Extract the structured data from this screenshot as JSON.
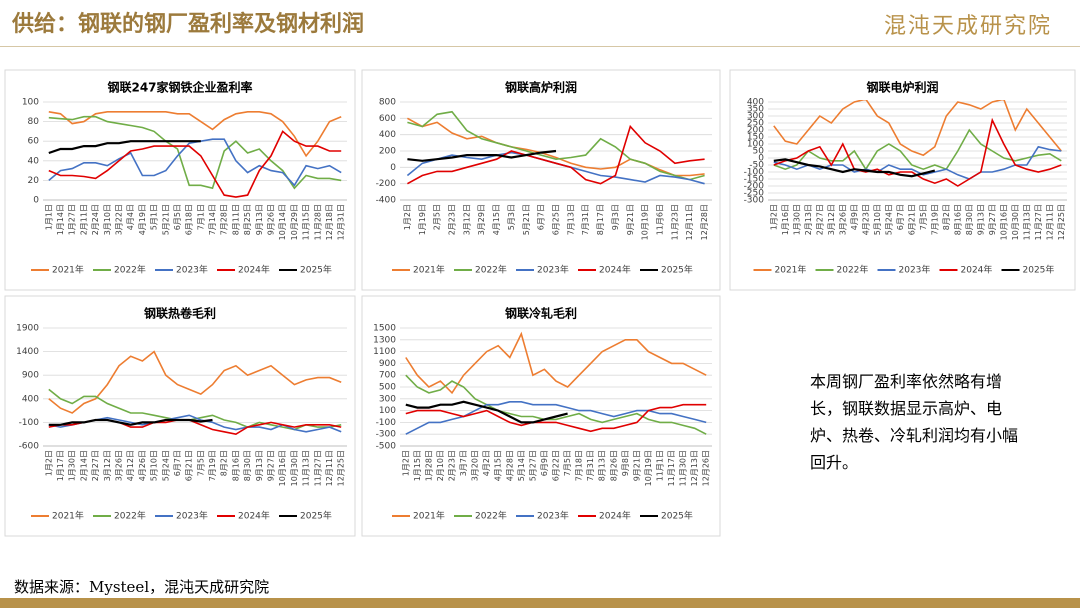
{
  "header": {
    "title": "供给：钢联的钢厂盈利率及钢材利润",
    "logo": "混沌天成研究院"
  },
  "chart_data": [
    {
      "type": "line",
      "title": "钢联247家钢铁企业盈利率",
      "categories": [
        "1月1日",
        "1月14日",
        "1月27日",
        "2月11日",
        "2月24日",
        "3月10日",
        "3月22日",
        "4月4日",
        "4月19日",
        "5月1日",
        "5月21日",
        "6月5日",
        "6月18日",
        "7月1日",
        "7月14日",
        "7月28日",
        "8月11日",
        "8月25日",
        "9月13日",
        "9月26日",
        "10月14日",
        "10月29日",
        "11月15日",
        "11月28日",
        "12月18日",
        "12月31日"
      ],
      "ylim": [
        0,
        100
      ],
      "yticks": [
        0,
        20,
        40,
        60,
        80,
        100
      ],
      "grid": true,
      "series": [
        {
          "name": "2021年",
          "color": "#ED7D31",
          "values": [
            90,
            88,
            78,
            80,
            88,
            90,
            90,
            90,
            90,
            90,
            90,
            88,
            88,
            80,
            72,
            82,
            88,
            90,
            90,
            88,
            80,
            65,
            45,
            60,
            80,
            85
          ]
        },
        {
          "name": "2022年",
          "color": "#70AD47",
          "values": [
            84,
            83,
            82,
            85,
            85,
            80,
            78,
            76,
            74,
            70,
            60,
            52,
            15,
            15,
            12,
            50,
            60,
            48,
            52,
            40,
            30,
            12,
            25,
            22,
            22,
            20
          ]
        },
        {
          "name": "2023年",
          "color": "#4472C4",
          "values": [
            20,
            30,
            32,
            38,
            38,
            35,
            42,
            48,
            25,
            25,
            30,
            45,
            58,
            60,
            62,
            62,
            40,
            28,
            35,
            30,
            28,
            15,
            35,
            32,
            35,
            28
          ]
        },
        {
          "name": "2024年",
          "color": "#E00000",
          "values": [
            30,
            25,
            25,
            24,
            22,
            30,
            40,
            50,
            52,
            55,
            55,
            55,
            55,
            45,
            25,
            5,
            3,
            5,
            30,
            45,
            70,
            60,
            55,
            55,
            50,
            50
          ]
        },
        {
          "name": "2025年",
          "color": "#000000",
          "values": [
            48,
            52,
            52,
            55,
            55,
            58,
            58,
            60,
            60,
            60,
            60,
            60,
            60,
            60,
            null,
            null,
            null,
            null,
            null,
            null,
            null,
            null,
            null,
            null,
            null,
            null
          ]
        }
      ]
    },
    {
      "type": "line",
      "title": "钢联高炉利润",
      "categories": [
        "1月2日",
        "1月19日",
        "2月5日",
        "2月23日",
        "3月12日",
        "3月29日",
        "4月15日",
        "5月3日",
        "5月21日",
        "6月7日",
        "6月25日",
        "7月13日",
        "7月31日",
        "8月17日",
        "9月3日",
        "9月21日",
        "10月19日",
        "11月6日",
        "11月23日",
        "12月11日",
        "12月28日"
      ],
      "ylim": [
        -400,
        800
      ],
      "yticks": [
        -400,
        -200,
        0,
        200,
        400,
        600,
        800
      ],
      "grid": true,
      "series": [
        {
          "name": "2021年",
          "color": "#ED7D31",
          "values": [
            600,
            500,
            550,
            420,
            350,
            380,
            300,
            250,
            220,
            180,
            120,
            50,
            0,
            -20,
            0,
            100,
            50,
            -30,
            -100,
            -100,
            -80
          ]
        },
        {
          "name": "2022年",
          "color": "#70AD47",
          "values": [
            550,
            500,
            650,
            680,
            450,
            350,
            300,
            250,
            200,
            150,
            100,
            120,
            150,
            350,
            250,
            100,
            50,
            -50,
            -100,
            -150,
            -100
          ]
        },
        {
          "name": "2023年",
          "color": "#4472C4",
          "values": [
            -100,
            50,
            100,
            150,
            120,
            100,
            150,
            180,
            150,
            100,
            50,
            0,
            -50,
            -100,
            -120,
            -150,
            -180,
            -100,
            -120,
            -150,
            -200
          ]
        },
        {
          "name": "2024年",
          "color": "#E00000",
          "values": [
            -200,
            -100,
            -50,
            -50,
            0,
            50,
            100,
            200,
            150,
            100,
            50,
            0,
            -150,
            -200,
            -100,
            500,
            300,
            200,
            50,
            80,
            100
          ]
        },
        {
          "name": "2025年",
          "color": "#000000",
          "values": [
            100,
            80,
            100,
            120,
            150,
            150,
            150,
            120,
            150,
            180,
            200,
            null,
            null,
            null,
            null,
            null,
            null,
            null,
            null,
            null,
            null
          ]
        }
      ]
    },
    {
      "type": "line",
      "title": "钢联电炉利润",
      "categories": [
        "1月2日",
        "1月16日",
        "1月30日",
        "2月13日",
        "2月27日",
        "3月12日",
        "3月26日",
        "4月9日",
        "4月23日",
        "5月10日",
        "5月24日",
        "6月7日",
        "6月21日",
        "7月5日",
        "7月19日",
        "8月2日",
        "8月16日",
        "8月30日",
        "9月13日",
        "9月27日",
        "10月16日",
        "10月30日",
        "11月13日",
        "11月27日",
        "12月11日",
        "12月25日"
      ],
      "ylim": [
        -300,
        400
      ],
      "yticks": [
        -300,
        -250,
        -200,
        -150,
        -100,
        -50,
        0,
        50,
        100,
        150,
        200,
        250,
        300,
        350,
        400
      ],
      "grid": true,
      "series": [
        {
          "name": "2021年",
          "color": "#ED7D31",
          "values": [
            230,
            120,
            100,
            200,
            300,
            250,
            350,
            400,
            420,
            300,
            250,
            100,
            50,
            20,
            80,
            300,
            400,
            380,
            350,
            400,
            420,
            200,
            350,
            250,
            150,
            50
          ]
        },
        {
          "name": "2022年",
          "color": "#70AD47",
          "values": [
            -50,
            -80,
            -50,
            50,
            0,
            -20,
            -20,
            50,
            -80,
            50,
            100,
            50,
            -50,
            -80,
            -50,
            -80,
            50,
            200,
            100,
            50,
            0,
            -20,
            0,
            20,
            30,
            -20
          ]
        },
        {
          "name": "2023年",
          "color": "#4472C4",
          "values": [
            -30,
            -50,
            -80,
            -50,
            -80,
            -50,
            -50,
            -100,
            -80,
            -100,
            -50,
            -80,
            -80,
            -120,
            -100,
            -80,
            -120,
            -150,
            -100,
            -100,
            -80,
            -50,
            -50,
            80,
            60,
            50
          ]
        },
        {
          "name": "2024年",
          "color": "#E00000",
          "values": [
            -50,
            -20,
            0,
            50,
            80,
            -50,
            100,
            -80,
            -100,
            -80,
            -120,
            -100,
            -100,
            -150,
            -180,
            -150,
            -200,
            -150,
            -100,
            270,
            100,
            -50,
            -80,
            -100,
            -80,
            -50
          ]
        },
        {
          "name": "2025年",
          "color": "#000000",
          "values": [
            -20,
            -10,
            -30,
            -50,
            -60,
            -80,
            -100,
            -80,
            -90,
            -100,
            -100,
            -120,
            -130,
            -110,
            -90,
            null,
            null,
            null,
            null,
            null,
            null,
            null,
            null,
            null,
            null,
            null
          ]
        }
      ]
    },
    {
      "type": "line",
      "title": "钢联热卷毛利",
      "categories": [
        "1月2日",
        "1月17日",
        "1月30日",
        "2月14日",
        "2月27日",
        "3月12日",
        "3月26日",
        "4月12日",
        "4月26日",
        "5月10日",
        "5月24日",
        "6月7日",
        "6月21日",
        "7月5日",
        "7月19日",
        "8月2日",
        "8月16日",
        "8月30日",
        "9月13日",
        "9月27日",
        "10月16日",
        "10月30日",
        "11月13日",
        "11月27日",
        "12月11日",
        "12月25日"
      ],
      "ylim": [
        -600,
        1900
      ],
      "yticks": [
        -600,
        -100,
        400,
        900,
        1400,
        1900
      ],
      "grid": true,
      "series": [
        {
          "name": "2021年",
          "color": "#ED7D31",
          "values": [
            400,
            200,
            100,
            300,
            400,
            700,
            1100,
            1300,
            1200,
            1400,
            900,
            700,
            600,
            500,
            700,
            1000,
            1100,
            900,
            1000,
            1100,
            900,
            700,
            800,
            850,
            850,
            750
          ]
        },
        {
          "name": "2022年",
          "color": "#70AD47",
          "values": [
            600,
            400,
            300,
            450,
            450,
            300,
            200,
            100,
            100,
            50,
            0,
            -50,
            -50,
            0,
            50,
            -50,
            -100,
            -200,
            -100,
            -150,
            -200,
            -250,
            -150,
            -200,
            -200,
            -150
          ]
        },
        {
          "name": "2023年",
          "color": "#4472C4",
          "values": [
            -150,
            -200,
            -150,
            -100,
            -50,
            0,
            -50,
            -100,
            -150,
            -100,
            -50,
            0,
            50,
            -50,
            -100,
            -200,
            -250,
            -200,
            -200,
            -250,
            -150,
            -250,
            -300,
            -250,
            -200,
            -300
          ]
        },
        {
          "name": "2024年",
          "color": "#E00000",
          "values": [
            -200,
            -150,
            -150,
            -100,
            -50,
            -50,
            -100,
            -200,
            -200,
            -100,
            -100,
            -50,
            -50,
            -150,
            -250,
            -300,
            -350,
            -200,
            -150,
            -100,
            -150,
            -200,
            -150,
            -150,
            -150,
            -200
          ]
        },
        {
          "name": "2025年",
          "color": "#000000",
          "values": [
            -150,
            -150,
            -100,
            -100,
            -50,
            -50,
            -100,
            -150,
            -100,
            -100,
            -50,
            -50,
            -50,
            -80,
            -50,
            null,
            null,
            null,
            null,
            null,
            null,
            null,
            null,
            null,
            null,
            null
          ]
        }
      ]
    },
    {
      "type": "line",
      "title": "钢联冷轧毛利",
      "categories": [
        "1月2日",
        "1月15日",
        "1月28日",
        "2月10日",
        "2月23日",
        "3月7日",
        "3月20日",
        "4月2日",
        "4月15日",
        "4月28日",
        "5月14日",
        "5月27日",
        "6月9日",
        "6月22日",
        "7月5日",
        "7月18日",
        "7月31日",
        "8月13日",
        "8月26日",
        "9月8日",
        "9月21日",
        "10月19日",
        "11月1日",
        "11月17日",
        "11月30日",
        "12月13日",
        "12月26日"
      ],
      "ylim": [
        -500,
        1500
      ],
      "yticks": [
        -500,
        -300,
        -100,
        100,
        300,
        500,
        700,
        900,
        1100,
        1300,
        1500
      ],
      "grid": true,
      "series": [
        {
          "name": "2021年",
          "color": "#ED7D31",
          "values": [
            1000,
            700,
            500,
            600,
            400,
            700,
            900,
            1100,
            1200,
            1000,
            1400,
            700,
            800,
            600,
            500,
            700,
            900,
            1100,
            1200,
            1300,
            1300,
            1100,
            1000,
            900,
            900,
            800,
            700
          ]
        },
        {
          "name": "2022年",
          "color": "#70AD47",
          "values": [
            700,
            500,
            400,
            450,
            600,
            500,
            300,
            200,
            100,
            50,
            0,
            0,
            -50,
            -50,
            0,
            50,
            -50,
            -100,
            -50,
            0,
            50,
            -50,
            -100,
            -100,
            -150,
            -200,
            -300
          ]
        },
        {
          "name": "2023年",
          "color": "#4472C4",
          "values": [
            -300,
            -200,
            -100,
            -100,
            -50,
            0,
            100,
            200,
            200,
            250,
            250,
            200,
            200,
            200,
            150,
            100,
            100,
            50,
            0,
            50,
            100,
            100,
            50,
            50,
            0,
            -50,
            -100
          ]
        },
        {
          "name": "2024年",
          "color": "#E00000",
          "values": [
            50,
            100,
            100,
            100,
            50,
            0,
            50,
            100,
            0,
            -100,
            -150,
            -100,
            -100,
            -100,
            -150,
            -200,
            -250,
            -200,
            -200,
            -150,
            -100,
            100,
            150,
            150,
            200,
            200,
            200
          ]
        },
        {
          "name": "2025年",
          "color": "#000000",
          "values": [
            200,
            150,
            150,
            200,
            200,
            250,
            200,
            150,
            100,
            0,
            -100,
            -100,
            -50,
            0,
            50,
            null,
            null,
            null,
            null,
            null,
            null,
            null,
            null,
            null,
            null,
            null,
            null
          ]
        }
      ]
    }
  ],
  "note": "本周钢厂盈利率依然略有增长，钢联数据显示高炉、电炉、热卷、冷轧利润均有小幅回升。",
  "source": "数据来源：Mysteel，混沌天成研究院"
}
